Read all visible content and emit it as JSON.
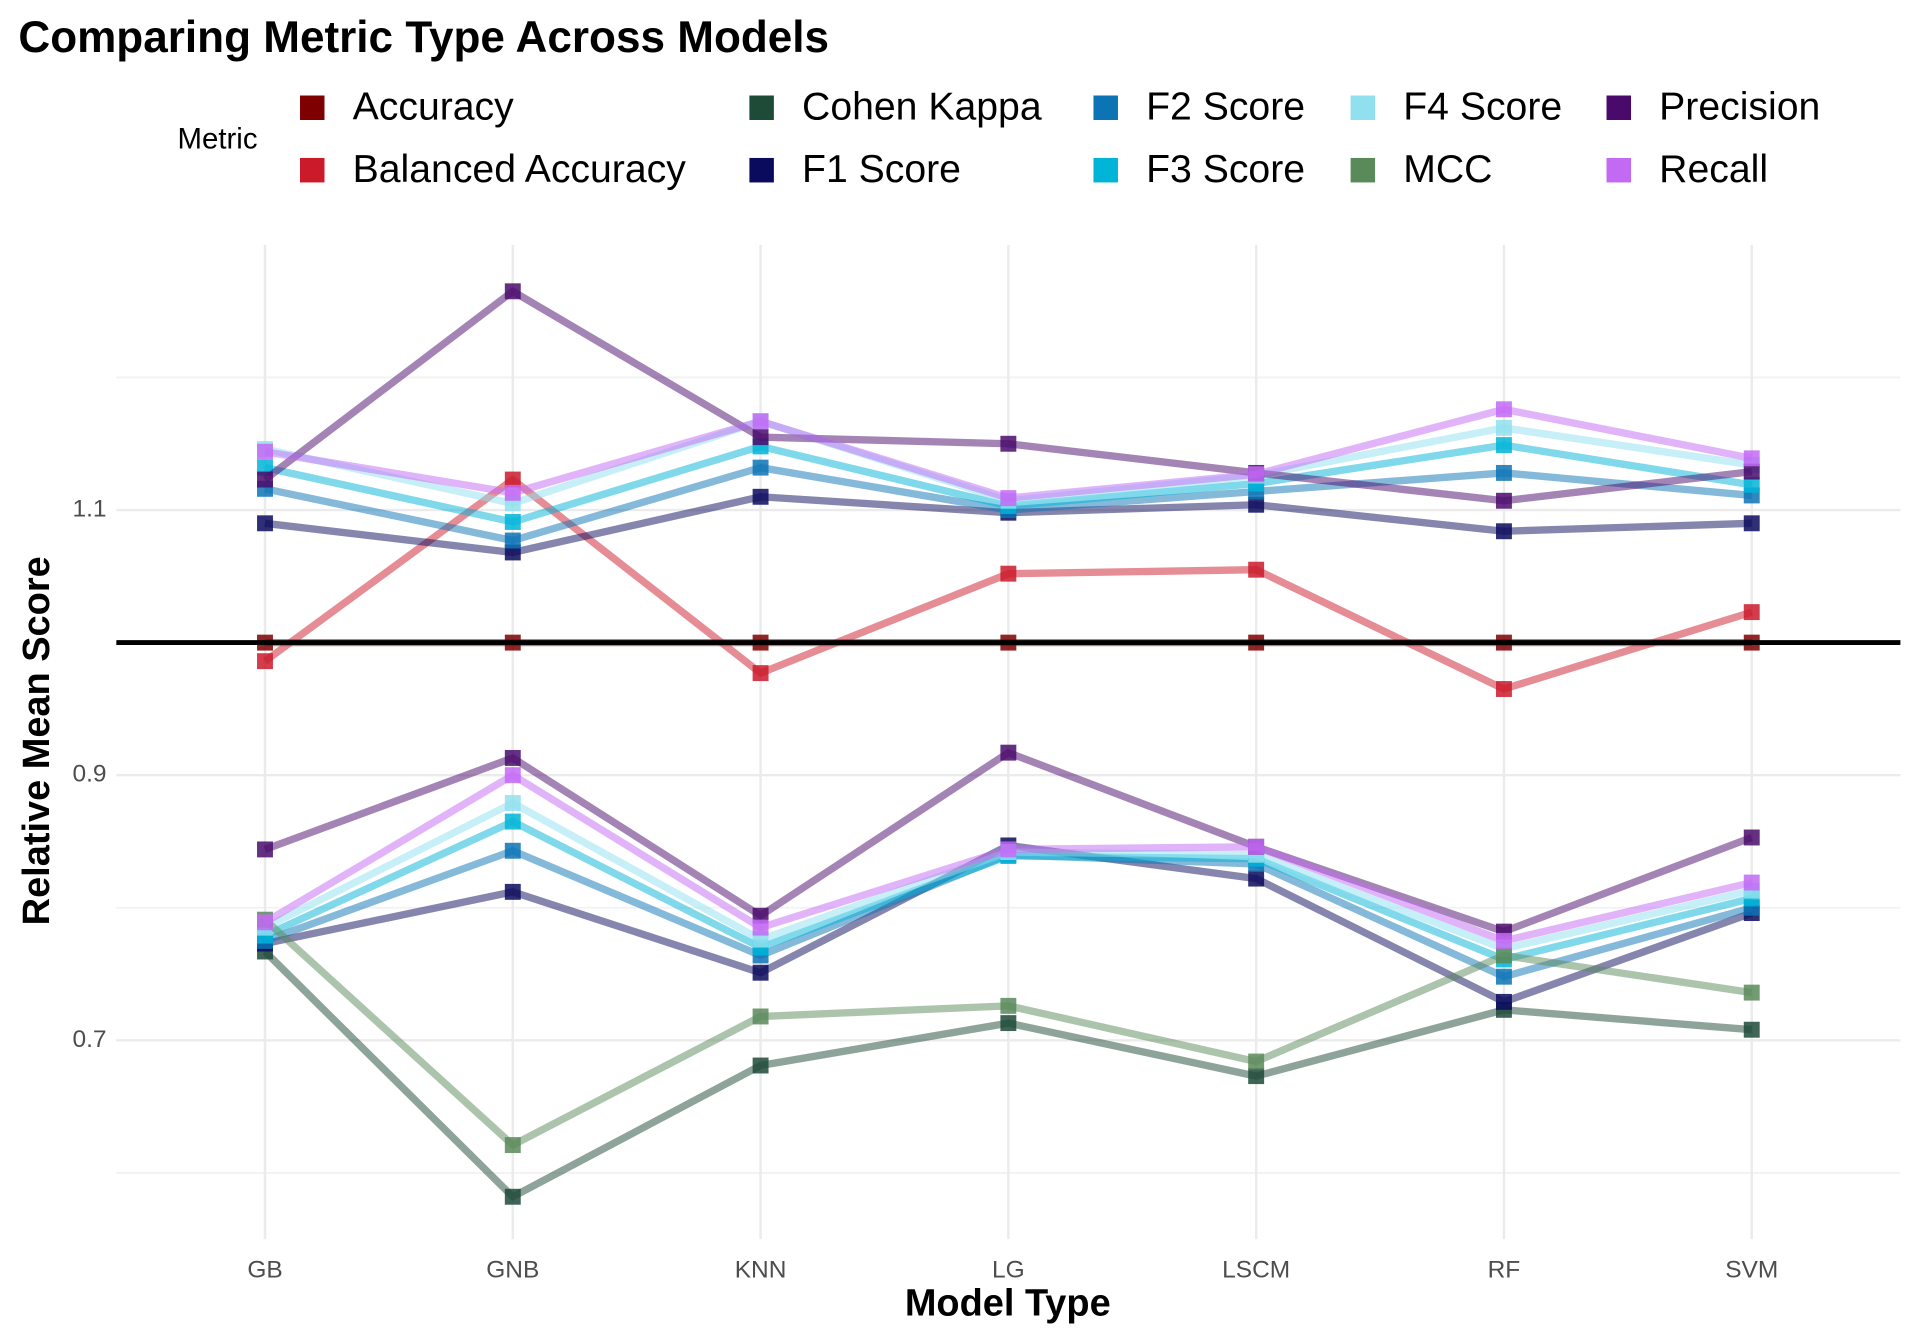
{
  "chart_data": {
    "type": "line",
    "title": "Comparing Metric Type Across Models",
    "x_label": "Model Type",
    "y_label": "Relative Mean Score",
    "legend_title": "Metric",
    "categories": [
      "GB",
      "GNB",
      "KNN",
      "LG",
      "LSCM",
      "RF",
      "SVM"
    ],
    "ylim": [
      0.55,
      1.3
    ],
    "yticks": [
      0.7,
      0.9,
      1.1
    ],
    "minor_yticks": [
      0.6,
      0.8,
      1.0,
      1.2
    ],
    "grid": true,
    "hline": 1,
    "series": [
      {
        "name": "Accuracy",
        "color": "#7f0000",
        "values": [
          [
            1,
            1,
            1,
            1,
            1,
            1,
            1
          ]
        ]
      },
      {
        "name": "Balanced Accuracy",
        "color": "#cb1a2a",
        "values": [
          [
            0.986,
            1.123,
            0.977,
            1.052,
            1.055,
            0.965,
            1.023
          ]
        ]
      },
      {
        "name": "Cohen Kappa",
        "color": "#1e4a38",
        "values": [
          [
            0.767,
            0.582,
            0.681,
            0.713,
            0.673,
            0.723,
            0.708
          ]
        ]
      },
      {
        "name": "F1 Score",
        "color": "#0b0b5e",
        "values": [
          [
            1.09,
            1.068,
            1.11,
            1.098,
            1.104,
            1.084,
            1.09
          ],
          [
            0.773,
            0.812,
            0.751,
            0.847,
            0.822,
            0.729,
            0.796
          ]
        ]
      },
      {
        "name": "F2 Score",
        "color": "#0c73b5",
        "values": [
          [
            1.116,
            1.077,
            1.132,
            1.1,
            1.114,
            1.128,
            1.111
          ],
          [
            0.775,
            0.843,
            0.764,
            0.84,
            0.833,
            0.748,
            0.8
          ]
        ]
      },
      {
        "name": "F3 Score",
        "color": "#00b4d8",
        "values": [
          [
            1.132,
            1.091,
            1.148,
            1.103,
            1.12,
            1.149,
            1.119
          ],
          [
            0.779,
            0.865,
            0.77,
            0.839,
            0.837,
            0.761,
            0.807
          ]
        ]
      },
      {
        "name": "F4 Score",
        "color": "#90e0ef",
        "values": [
          [
            1.146,
            1.105,
            1.167,
            1.107,
            1.126,
            1.162,
            1.134
          ],
          [
            0.785,
            0.879,
            0.776,
            0.842,
            0.84,
            0.769,
            0.813
          ]
        ]
      },
      {
        "name": "MCC",
        "color": "#5a8a5a",
        "values": [
          [
            0.791,
            0.621,
            0.718,
            0.726,
            0.684,
            0.764,
            0.736
          ]
        ]
      },
      {
        "name": "Precision",
        "color": "#4a0a6c",
        "values": [
          [
            1.123,
            1.265,
            1.155,
            1.15,
            1.128,
            1.107,
            1.129
          ],
          [
            0.844,
            0.913,
            0.794,
            0.917,
            0.846,
            0.782,
            0.853
          ]
        ]
      },
      {
        "name": "Recall",
        "color": "#c36af5",
        "values": [
          [
            1.144,
            1.113,
            1.167,
            1.109,
            1.127,
            1.176,
            1.139
          ],
          [
            0.789,
            0.9,
            0.785,
            0.844,
            0.846,
            0.775,
            0.819
          ]
        ]
      }
    ]
  }
}
